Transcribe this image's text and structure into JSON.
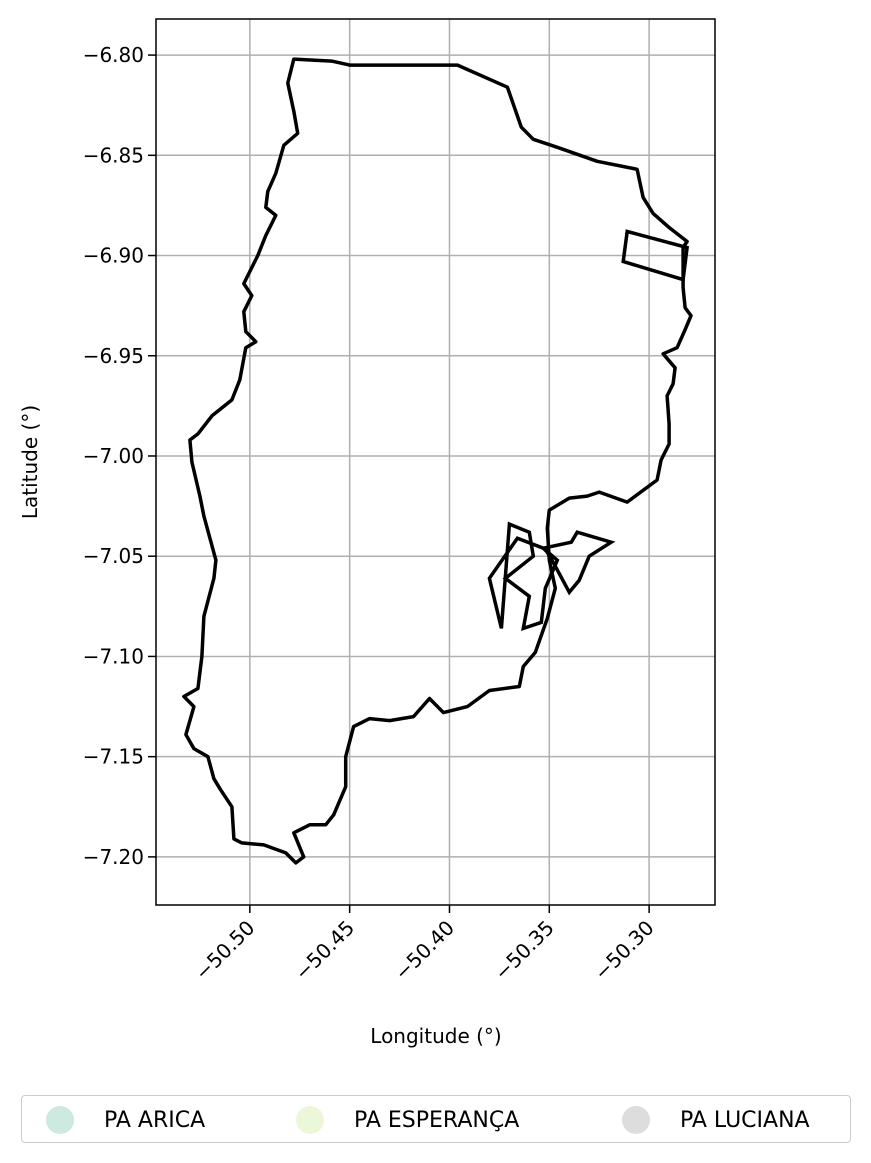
{
  "chart_data": {
    "type": "map",
    "xlabel": "Longitude (°)",
    "ylabel": "Latitude (°)",
    "xlim": [
      -50.547,
      -50.267
    ],
    "ylim": [
      -7.224,
      -6.782
    ],
    "x_ticks": [
      -50.5,
      -50.45,
      -50.4,
      -50.35,
      -50.3
    ],
    "x_tick_labels": [
      "−50.50",
      "−50.45",
      "−50.40",
      "−50.35",
      "−50.30"
    ],
    "y_ticks": [
      -6.8,
      -6.85,
      -6.9,
      -6.95,
      -7.0,
      -7.05,
      -7.1,
      -7.15,
      -7.2
    ],
    "y_tick_labels": [
      "−6.80",
      "−6.85",
      "−6.90",
      "−6.95",
      "−7.00",
      "−7.05",
      "−7.10",
      "−7.15",
      "−7.20"
    ],
    "grid": true,
    "legend_placement": "bottom-center",
    "edge_color": "#000000",
    "outline": [
      [
        -50.478,
        -6.802
      ],
      [
        -50.459,
        -6.803
      ],
      [
        -50.45,
        -6.805
      ],
      [
        -50.396,
        -6.805
      ],
      [
        -50.371,
        -6.816
      ],
      [
        -50.364,
        -6.836
      ],
      [
        -50.358,
        -6.842
      ],
      [
        -50.346,
        -6.846
      ],
      [
        -50.326,
        -6.853
      ],
      [
        -50.306,
        -6.857
      ],
      [
        -50.303,
        -6.871
      ],
      [
        -50.298,
        -6.879
      ],
      [
        -50.29,
        -6.886
      ],
      [
        -50.281,
        -6.893
      ],
      [
        -50.283,
        -6.896
      ],
      [
        -50.283,
        -6.911
      ],
      [
        -50.283,
        -6.916
      ],
      [
        -50.282,
        -6.926
      ],
      [
        -50.279,
        -6.93
      ],
      [
        -50.282,
        -6.937
      ],
      [
        -50.286,
        -6.946
      ],
      [
        -50.293,
        -6.949
      ],
      [
        -50.287,
        -6.956
      ],
      [
        -50.288,
        -6.964
      ],
      [
        -50.291,
        -6.97
      ],
      [
        -50.29,
        -6.984
      ],
      [
        -50.29,
        -6.994
      ],
      [
        -50.294,
        -7.002
      ],
      [
        -50.296,
        -7.012
      ],
      [
        -50.311,
        -7.023
      ],
      [
        -50.325,
        -7.018
      ],
      [
        -50.331,
        -7.02
      ],
      [
        -50.34,
        -7.021
      ],
      [
        -50.35,
        -7.027
      ],
      [
        -50.351,
        -7.036
      ],
      [
        -50.35,
        -7.052
      ],
      [
        -50.347,
        -7.066
      ],
      [
        -50.351,
        -7.081
      ],
      [
        -50.357,
        -7.098
      ],
      [
        -50.363,
        -7.105
      ],
      [
        -50.365,
        -7.115
      ],
      [
        -50.38,
        -7.117
      ],
      [
        -50.391,
        -7.125
      ],
      [
        -50.403,
        -7.128
      ],
      [
        -50.41,
        -7.121
      ],
      [
        -50.418,
        -7.13
      ],
      [
        -50.43,
        -7.132
      ],
      [
        -50.44,
        -7.131
      ],
      [
        -50.448,
        -7.135
      ],
      [
        -50.452,
        -7.15
      ],
      [
        -50.452,
        -7.165
      ],
      [
        -50.458,
        -7.179
      ],
      [
        -50.462,
        -7.184
      ],
      [
        -50.47,
        -7.184
      ],
      [
        -50.478,
        -7.188
      ],
      [
        -50.473,
        -7.2
      ],
      [
        -50.477,
        -7.203
      ],
      [
        -50.482,
        -7.198
      ],
      [
        -50.493,
        -7.194
      ],
      [
        -50.504,
        -7.193
      ],
      [
        -50.508,
        -7.191
      ],
      [
        -50.509,
        -7.175
      ],
      [
        -50.515,
        -7.166
      ],
      [
        -50.518,
        -7.161
      ],
      [
        -50.521,
        -7.15
      ],
      [
        -50.528,
        -7.146
      ],
      [
        -50.532,
        -7.139
      ],
      [
        -50.528,
        -7.125
      ],
      [
        -50.533,
        -7.12
      ],
      [
        -50.526,
        -7.116
      ],
      [
        -50.524,
        -7.1
      ],
      [
        -50.523,
        -7.08
      ],
      [
        -50.518,
        -7.061
      ],
      [
        -50.517,
        -7.052
      ],
      [
        -50.52,
        -7.041
      ],
      [
        -50.523,
        -7.03
      ],
      [
        -50.525,
        -7.02
      ],
      [
        -50.529,
        -7.003
      ],
      [
        -50.53,
        -6.992
      ],
      [
        -50.526,
        -6.989
      ],
      [
        -50.519,
        -6.98
      ],
      [
        -50.509,
        -6.972
      ],
      [
        -50.505,
        -6.962
      ],
      [
        -50.502,
        -6.946
      ],
      [
        -50.497,
        -6.943
      ],
      [
        -50.502,
        -6.938
      ],
      [
        -50.503,
        -6.928
      ],
      [
        -50.499,
        -6.92
      ],
      [
        -50.503,
        -6.914
      ],
      [
        -50.496,
        -6.9
      ],
      [
        -50.492,
        -6.89
      ],
      [
        -50.487,
        -6.88
      ],
      [
        -50.492,
        -6.876
      ],
      [
        -50.491,
        -6.868
      ],
      [
        -50.487,
        -6.859
      ],
      [
        -50.483,
        -6.845
      ],
      [
        -50.476,
        -6.839
      ],
      [
        -50.478,
        -6.828
      ],
      [
        -50.481,
        -6.814
      ],
      [
        -50.478,
        -6.802
      ]
    ],
    "parcels": [
      {
        "name": "PA ARICA",
        "color": "#cceadf",
        "outline": [
          [
            -50.313,
            -6.903
          ],
          [
            -50.311,
            -6.888
          ],
          [
            -50.281,
            -6.896
          ],
          [
            -50.283,
            -6.912
          ],
          [
            -50.313,
            -6.903
          ]
        ]
      },
      {
        "name": "PA ESPERANÇA",
        "color": "#ebf7d8",
        "outline": [
          [
            -50.37,
            -7.034
          ],
          [
            -50.36,
            -7.038
          ],
          [
            -50.358,
            -7.05
          ],
          [
            -50.372,
            -7.061
          ],
          [
            -50.36,
            -7.07
          ],
          [
            -50.363,
            -7.086
          ],
          [
            -50.354,
            -7.083
          ],
          [
            -50.352,
            -7.066
          ],
          [
            -50.346,
            -7.052
          ],
          [
            -50.353,
            -7.046
          ],
          [
            -50.366,
            -7.041
          ],
          [
            -50.38,
            -7.061
          ],
          [
            -50.374,
            -7.086
          ],
          [
            -50.37,
            -7.034
          ]
        ]
      },
      {
        "name": "PA LUCIANA",
        "color": "#dddddd",
        "outline": [
          [
            -50.353,
            -7.046
          ],
          [
            -50.339,
            -7.043
          ],
          [
            -50.336,
            -7.038
          ],
          [
            -50.319,
            -7.043
          ],
          [
            -50.33,
            -7.05
          ],
          [
            -50.335,
            -7.062
          ],
          [
            -50.34,
            -7.068
          ],
          [
            -50.347,
            -7.055
          ],
          [
            -50.351,
            -7.048
          ],
          [
            -50.353,
            -7.046
          ]
        ]
      }
    ]
  },
  "legend": {
    "items": [
      {
        "label": "PA ARICA",
        "color": "#cceadf"
      },
      {
        "label": "PA ESPERANÇA",
        "color": "#ebf7d8"
      },
      {
        "label": "PA LUCIANA",
        "color": "#dddddd"
      }
    ]
  }
}
